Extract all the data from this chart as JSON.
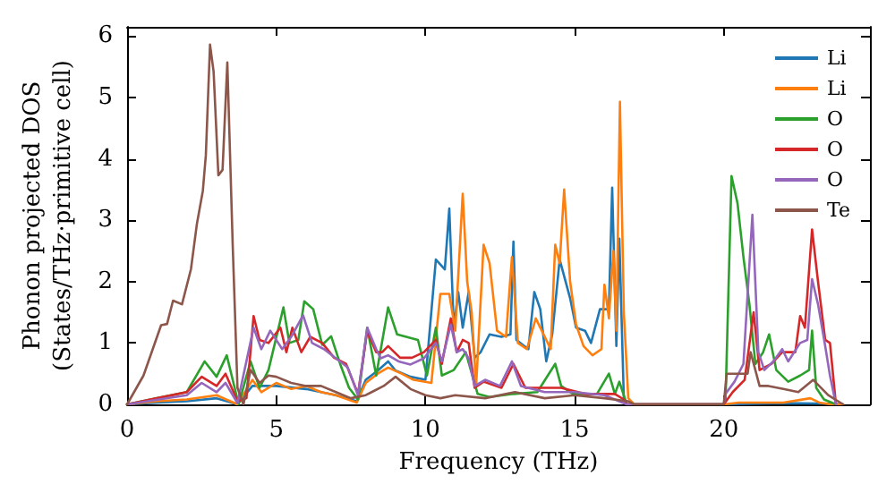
{
  "chart_data": {
    "type": "line",
    "xlabel": "Frequency (THz)",
    "ylabel": "Phonon projected DOS\n(States/THz·primitive cell)",
    "xlim": [
      0,
      24.9
    ],
    "ylim": [
      0,
      6.15
    ],
    "xticks": [
      0,
      5,
      10,
      15,
      20
    ],
    "yticks": [
      0,
      1,
      2,
      3,
      4,
      5,
      6
    ],
    "grid": false,
    "legend": "top right",
    "marker": "none",
    "line_style": "solid",
    "series": [
      {
        "name": "Li",
        "color": "#1f77b4",
        "x": [
          0,
          1,
          2,
          3,
          3.7,
          4.2,
          5,
          6,
          7,
          7.7,
          8,
          8.4,
          8.75,
          9,
          9.5,
          10,
          10.35,
          10.65,
          10.8,
          10.95,
          11.1,
          11.25,
          11.45,
          11.65,
          11.85,
          12.15,
          12.55,
          12.85,
          12.95,
          13.05,
          13.45,
          13.65,
          13.85,
          14.05,
          14.25,
          14.5,
          14.85,
          15.05,
          15.35,
          15.55,
          15.85,
          16.15,
          16.26,
          16.4,
          16.5,
          16.65,
          16.75,
          20,
          22,
          23.6,
          24
        ],
        "values": [
          0,
          0.03,
          0.05,
          0.1,
          0,
          0.3,
          0.3,
          0.25,
          0.15,
          0.05,
          0.4,
          0.55,
          0.7,
          0.55,
          0.45,
          0.4,
          2.36,
          2.2,
          3.19,
          1.25,
          1.83,
          1.25,
          1.83,
          0.76,
          0.85,
          1.14,
          1.1,
          1.14,
          2.65,
          1.05,
          0.9,
          1.83,
          1.55,
          0.7,
          1.14,
          2.36,
          1.73,
          1.25,
          1.2,
          1,
          1.55,
          1.55,
          3.53,
          0.95,
          2.7,
          0.1,
          0,
          0,
          0.02,
          0.01,
          0
        ]
      },
      {
        "name": "Li",
        "color": "#ff7f0e",
        "x": [
          0,
          1,
          2,
          3,
          3.7,
          4.2,
          4.5,
          5,
          5.5,
          6,
          6.5,
          7,
          7.7,
          8,
          8.4,
          8.75,
          9.2,
          9.6,
          10.2,
          10.5,
          10.8,
          11,
          11.25,
          11.4,
          11.55,
          11.7,
          11.95,
          12.15,
          12.4,
          12.7,
          12.9,
          13.1,
          13.4,
          13.7,
          13.9,
          14.2,
          14.35,
          14.5,
          14.65,
          14.85,
          15.05,
          15.3,
          15.6,
          15.9,
          16,
          16.15,
          16.3,
          16.4,
          16.52,
          16.65,
          16.8,
          17,
          20,
          20.5,
          22,
          22.9,
          23.2,
          23.6,
          24
        ],
        "values": [
          0,
          0.05,
          0.08,
          0.15,
          0,
          0.4,
          0.2,
          0.35,
          0.25,
          0.3,
          0.2,
          0.15,
          0.03,
          0.35,
          0.5,
          0.6,
          0.5,
          0.4,
          0.35,
          1.8,
          1.8,
          1.2,
          3.43,
          2,
          1.5,
          0.3,
          2.6,
          2.3,
          1.2,
          1.1,
          2.4,
          1,
          0.9,
          1.4,
          1.2,
          0.9,
          2.6,
          2.3,
          3.5,
          2,
          1.3,
          0.95,
          0.8,
          0.9,
          1.95,
          1.4,
          2.5,
          1.2,
          4.93,
          1.5,
          0.1,
          0,
          0,
          0.03,
          0.03,
          0.1,
          0.03,
          0,
          0
        ]
      },
      {
        "name": "O",
        "color": "#2ca02c",
        "x": [
          0,
          1,
          2,
          2.6,
          3,
          3.34,
          3.74,
          4.14,
          4.44,
          4.74,
          5.24,
          5.44,
          5.74,
          5.94,
          6.24,
          6.54,
          6.84,
          7.14,
          7.44,
          7.74,
          8.05,
          8.35,
          8.75,
          9.05,
          9.75,
          10.05,
          10.35,
          10.55,
          10.95,
          11.35,
          11.75,
          12.15,
          12.95,
          13.75,
          14.35,
          14.55,
          14.95,
          15.75,
          16.15,
          16.35,
          16.5,
          16.75,
          20,
          20.06,
          20.26,
          20.46,
          20.66,
          20.86,
          21.06,
          21.32,
          21.52,
          21.76,
          22.16,
          22.56,
          22.86,
          22.96,
          23.1,
          23.36,
          23.76
        ],
        "values": [
          0,
          0.1,
          0.2,
          0.7,
          0.45,
          0.8,
          0,
          0.7,
          0.27,
          0.56,
          1.58,
          1,
          1.05,
          1.68,
          1.55,
          0.97,
          1.11,
          0.66,
          0.27,
          0.08,
          1.25,
          0.47,
          1.58,
          1.14,
          1.05,
          0.47,
          1.25,
          0.47,
          0.56,
          0.85,
          0.17,
          0.12,
          0.17,
          0.2,
          0.66,
          0.3,
          0.17,
          0.17,
          0.5,
          0.17,
          0.37,
          0,
          0,
          0.08,
          3.72,
          3.28,
          2.4,
          1.63,
          0.66,
          0.85,
          1.14,
          0.56,
          0.37,
          0.47,
          0.56,
          1.2,
          0.27,
          0.08,
          0
        ]
      },
      {
        "name": "O",
        "color": "#d62728",
        "x": [
          0,
          1,
          2,
          2.5,
          3,
          3.3,
          3.7,
          4,
          4.24,
          4.44,
          4.74,
          5.14,
          5.34,
          5.54,
          5.84,
          6.14,
          6.54,
          6.94,
          7.34,
          7.74,
          8.05,
          8.35,
          8.55,
          8.75,
          9.15,
          9.55,
          9.95,
          10.35,
          10.55,
          10.85,
          11.05,
          11.25,
          11.45,
          11.65,
          11.95,
          12.55,
          12.95,
          13.35,
          13.95,
          14.55,
          15.35,
          16.35,
          16.65,
          16.75,
          20,
          20.3,
          20.7,
          21,
          21.2,
          21.6,
          21.96,
          22.4,
          22.56,
          22.72,
          22.96,
          23.16,
          23.4,
          23.56,
          23.76
        ],
        "values": [
          0,
          0.1,
          0.2,
          0.45,
          0.3,
          0.5,
          0.05,
          0.1,
          1.44,
          1.05,
          1,
          1.25,
          0.85,
          1.25,
          0.85,
          1.1,
          1,
          0.76,
          0.66,
          0.17,
          1.2,
          0.85,
          0.85,
          0.95,
          0.76,
          0.76,
          0.85,
          1.05,
          0.66,
          1.4,
          0.85,
          1.05,
          1,
          0.27,
          0.37,
          0.27,
          0.66,
          0.27,
          0.27,
          0.27,
          0.17,
          0.17,
          0.08,
          0,
          0,
          0.2,
          0.4,
          1.5,
          0.56,
          0.66,
          0.85,
          0.85,
          1.44,
          1.25,
          2.85,
          2,
          1.05,
          1,
          0
        ]
      },
      {
        "name": "O",
        "color": "#9467bd",
        "x": [
          0,
          2,
          2.5,
          3,
          3.3,
          3.7,
          4.24,
          4.5,
          4.8,
          5.2,
          5.5,
          5.9,
          6.2,
          6.6,
          7,
          7.4,
          7.74,
          8.05,
          8.35,
          8.5,
          8.75,
          9.1,
          9.5,
          9.95,
          10.35,
          10.55,
          10.85,
          11.05,
          11.25,
          11.45,
          11.65,
          12,
          12.5,
          12.9,
          13.2,
          14,
          15,
          16,
          16.75,
          20,
          20.06,
          20.36,
          20.66,
          20.96,
          21.16,
          21.36,
          21.66,
          21.96,
          22.16,
          22.56,
          22.8,
          22.96,
          23.16,
          23.4,
          23.56,
          23.76
        ],
        "values": [
          0,
          0.15,
          0.35,
          0.2,
          0.35,
          0.02,
          1.25,
          0.9,
          1.2,
          0.9,
          1.1,
          1.45,
          1,
          0.9,
          0.75,
          0.6,
          0.15,
          1.25,
          0.9,
          0.75,
          0.8,
          0.7,
          0.65,
          0.75,
          1,
          0.7,
          1.3,
          0.85,
          0.9,
          0.75,
          0.3,
          0.4,
          0.3,
          0.7,
          0.3,
          0.2,
          0.2,
          0.15,
          0,
          0,
          0.17,
          0.37,
          0.66,
          3.09,
          0.85,
          0.56,
          0.7,
          0.9,
          0.7,
          1,
          1.05,
          2.04,
          1.63,
          0.95,
          0.47,
          0
        ]
      },
      {
        "name": "Te",
        "color": "#8c564b",
        "x": [
          0,
          0.55,
          1.14,
          1.34,
          1.54,
          1.84,
          2.14,
          2.34,
          2.54,
          2.64,
          2.78,
          2.9,
          3.06,
          3.2,
          3.36,
          3.54,
          3.7,
          3.9,
          4.14,
          4.44,
          4.74,
          5,
          5.5,
          6,
          6.5,
          7,
          7.5,
          8,
          8.2,
          8.6,
          9,
          9.5,
          10,
          10.5,
          11,
          12,
          13,
          14,
          15,
          16,
          16.8,
          17,
          20,
          20.1,
          20.8,
          20.9,
          21.2,
          21.5,
          22,
          22.5,
          23,
          23.5,
          24
        ],
        "values": [
          0,
          0.47,
          1.29,
          1.31,
          1.69,
          1.63,
          2.2,
          2.94,
          3.48,
          4.06,
          5.86,
          5.42,
          3.73,
          3.82,
          5.57,
          2.6,
          0.27,
          0,
          0.56,
          0.35,
          0.47,
          0.45,
          0.35,
          0.3,
          0.3,
          0.2,
          0.1,
          0.15,
          0.2,
          0.3,
          0.45,
          0.25,
          0.15,
          0.1,
          0.15,
          0.1,
          0.2,
          0.1,
          0.15,
          0.1,
          0.05,
          0,
          0,
          0.5,
          0.5,
          0.85,
          0.3,
          0.3,
          0.25,
          0.2,
          0.4,
          0.15,
          0
        ]
      }
    ]
  }
}
